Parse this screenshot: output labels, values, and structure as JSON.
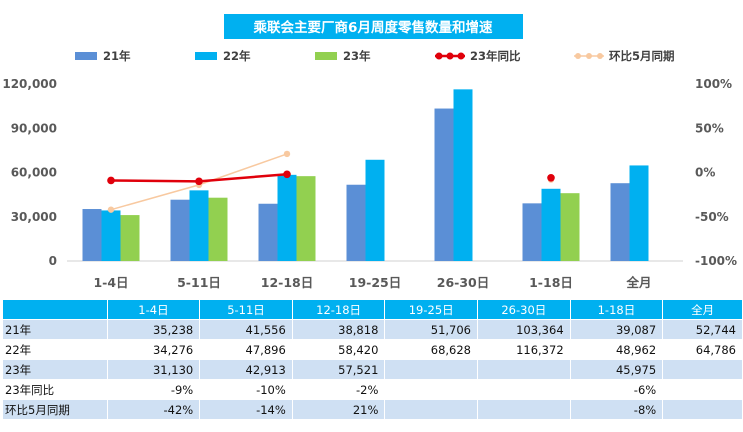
{
  "title": "乘联会主要厂商6月周度零售数量和增速",
  "colors": {
    "title_bg": "#00b0f0",
    "s21": "#5b8fd6",
    "s22": "#00b0f0",
    "s23": "#92d050",
    "yoy": "#e0000b",
    "mom": "#f8c9a0",
    "axis_text": "#595959"
  },
  "chart_data": {
    "type": "bar",
    "categories": [
      "1-4日",
      "5-11日",
      "12-18日",
      "19-25日",
      "26-30日",
      "1-18日",
      "全月"
    ],
    "series": [
      {
        "name": "21年",
        "values": [
          35238,
          41556,
          38818,
          51706,
          103364,
          39087,
          52744
        ]
      },
      {
        "name": "22年",
        "values": [
          34276,
          47896,
          58420,
          68628,
          116372,
          48962,
          64786
        ]
      },
      {
        "name": "23年",
        "values": [
          31130,
          42913,
          57521,
          null,
          null,
          45975,
          null
        ]
      }
    ],
    "line_series": [
      {
        "name": "23年同比",
        "values": [
          -9,
          -10,
          -2,
          null,
          null,
          -6,
          null
        ],
        "unit": "%"
      },
      {
        "name": "环比5月同期",
        "values": [
          -42,
          -14,
          21,
          null,
          null,
          -8,
          null
        ],
        "unit": "%"
      }
    ],
    "y_left": {
      "min": 0,
      "max": 120000,
      "ticks": [
        "0",
        "30,000",
        "60,000",
        "90,000",
        "120,000"
      ]
    },
    "y_right": {
      "min": -100,
      "max": 100,
      "ticks": [
        "-100%",
        "-50%",
        "0%",
        "50%",
        "100%"
      ]
    },
    "legend_position": "top"
  },
  "table": {
    "columns": [
      "1-4日",
      "5-11日",
      "12-18日",
      "19-25日",
      "26-30日",
      "1-18日",
      "全月"
    ],
    "rows": [
      {
        "label": "21年",
        "cells": [
          "35,238",
          "41,556",
          "38,818",
          "51,706",
          "103,364",
          "39,087",
          "52,744"
        ]
      },
      {
        "label": "22年",
        "cells": [
          "34,276",
          "47,896",
          "58,420",
          "68,628",
          "116,372",
          "48,962",
          "64,786"
        ]
      },
      {
        "label": "23年",
        "cells": [
          "31,130",
          "42,913",
          "57,521",
          "",
          "",
          "45,975",
          ""
        ]
      },
      {
        "label": "23年同比",
        "cells": [
          "-9%",
          "-10%",
          "-2%",
          "",
          "",
          "-6%",
          ""
        ]
      },
      {
        "label": "环比5月同期",
        "cells": [
          "-42%",
          "-14%",
          "21%",
          "",
          "",
          "-8%",
          ""
        ]
      }
    ]
  }
}
